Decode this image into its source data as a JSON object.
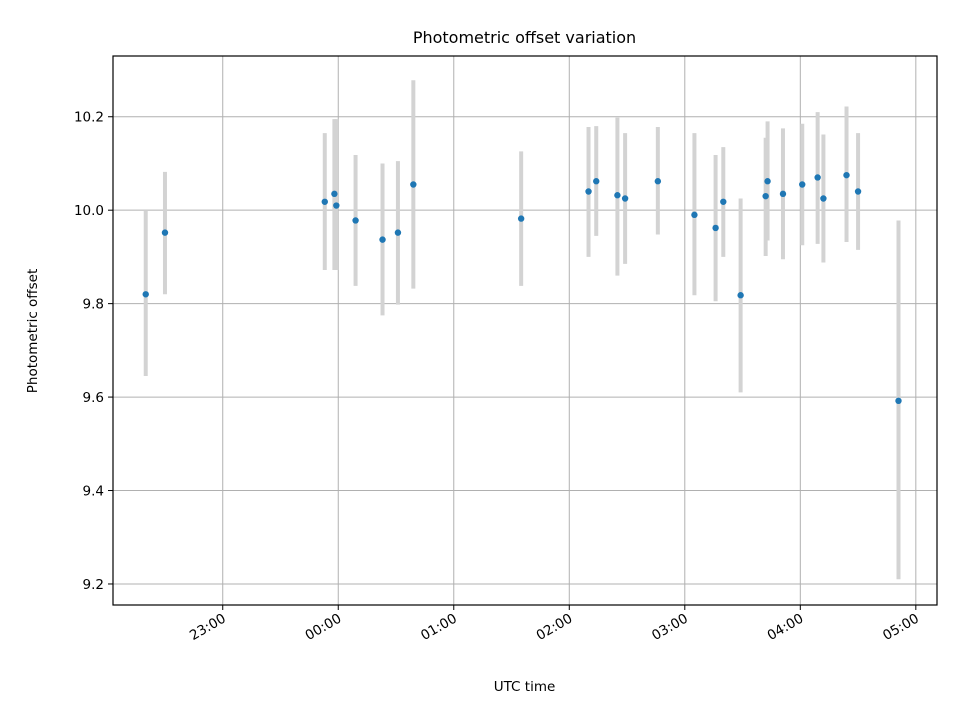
{
  "chart_data": {
    "type": "scatter",
    "title": "Photometric offset variation",
    "xlabel": "UTC time",
    "ylabel": "Photometric offset",
    "x_ticks": [
      "23:00",
      "00:00",
      "01:00",
      "02:00",
      "03:00",
      "04:00",
      "05:00"
    ],
    "y_ticks": [
      "9.2",
      "9.4",
      "9.6",
      "9.8",
      "10.0",
      "10.2"
    ],
    "xlim": [
      "22:03",
      "05:11"
    ],
    "ylim": [
      9.155,
      10.33
    ],
    "grid": true,
    "errorbar_color": "#d3d3d3",
    "point_color": "#1f77b4",
    "series": [
      {
        "points": [
          {
            "x": "22:20",
            "y": 9.82,
            "lo": 9.645,
            "hi": 10.0
          },
          {
            "x": "22:30",
            "y": 9.952,
            "lo": 9.82,
            "hi": 10.082
          },
          {
            "x": "23:53",
            "y": 10.018,
            "lo": 9.872,
            "hi": 10.165
          },
          {
            "x": "23:58",
            "y": 10.035,
            "lo": 9.872,
            "hi": 10.195
          },
          {
            "x": "23:59",
            "y": 10.01,
            "lo": 9.872,
            "hi": 10.195
          },
          {
            "x": "00:09",
            "y": 9.978,
            "lo": 9.838,
            "hi": 10.118
          },
          {
            "x": "00:23",
            "y": 9.937,
            "lo": 9.775,
            "hi": 10.1
          },
          {
            "x": "00:31",
            "y": 9.952,
            "lo": 9.798,
            "hi": 10.105
          },
          {
            "x": "00:39",
            "y": 10.055,
            "lo": 9.832,
            "hi": 10.278
          },
          {
            "x": "01:35",
            "y": 9.982,
            "lo": 9.838,
            "hi": 10.126
          },
          {
            "x": "02:10",
            "y": 10.04,
            "lo": 9.9,
            "hi": 10.178
          },
          {
            "x": "02:14",
            "y": 10.062,
            "lo": 9.945,
            "hi": 10.18
          },
          {
            "x": "02:25",
            "y": 10.032,
            "lo": 9.86,
            "hi": 10.198
          },
          {
            "x": "02:29",
            "y": 10.025,
            "lo": 9.885,
            "hi": 10.165
          },
          {
            "x": "02:46",
            "y": 10.062,
            "lo": 9.948,
            "hi": 10.178
          },
          {
            "x": "03:05",
            "y": 9.99,
            "lo": 9.818,
            "hi": 10.165
          },
          {
            "x": "03:16",
            "y": 9.962,
            "lo": 9.805,
            "hi": 10.118
          },
          {
            "x": "03:20",
            "y": 10.018,
            "lo": 9.9,
            "hi": 10.135
          },
          {
            "x": "03:29",
            "y": 9.818,
            "lo": 9.61,
            "hi": 10.025
          },
          {
            "x": "03:42",
            "y": 10.03,
            "lo": 9.902,
            "hi": 10.155
          },
          {
            "x": "03:43",
            "y": 10.062,
            "lo": 9.935,
            "hi": 10.19
          },
          {
            "x": "03:51",
            "y": 10.035,
            "lo": 9.895,
            "hi": 10.175
          },
          {
            "x": "04:01",
            "y": 10.055,
            "lo": 9.925,
            "hi": 10.185
          },
          {
            "x": "04:09",
            "y": 10.07,
            "lo": 9.928,
            "hi": 10.21
          },
          {
            "x": "04:12",
            "y": 10.025,
            "lo": 9.888,
            "hi": 10.162
          },
          {
            "x": "04:24",
            "y": 10.075,
            "lo": 9.932,
            "hi": 10.222
          },
          {
            "x": "04:30",
            "y": 10.04,
            "lo": 9.915,
            "hi": 10.165
          },
          {
            "x": "04:51",
            "y": 9.592,
            "lo": 9.21,
            "hi": 9.978
          }
        ]
      }
    ]
  }
}
